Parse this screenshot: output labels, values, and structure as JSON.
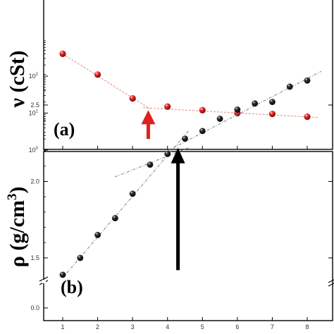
{
  "chart_data": [
    {
      "panel_label": "(a)",
      "type": "scatter",
      "xlabel": "",
      "ylabel": "ν (cSt)",
      "yscale": "log",
      "xlim": [
        0.5,
        8.5
      ],
      "ylim": [
        1,
        1000
      ],
      "x_ticks": [
        "1",
        "2",
        "3",
        "4",
        "5",
        "6",
        "7",
        "8"
      ],
      "y_ticks": [
        {
          "value": 1,
          "base": "10",
          "exp": "0"
        },
        {
          "value": 10,
          "base": "10",
          "exp": "1"
        },
        {
          "value": 100,
          "base": "10",
          "exp": "2"
        }
      ],
      "marker_color": "#e02020",
      "fit_line_color": "#e0a090",
      "series": [
        {
          "x": [
            1,
            2,
            3,
            4,
            5,
            6,
            7,
            8
          ],
          "y": [
            400,
            110,
            25,
            15,
            12,
            10,
            9.5,
            8
          ]
        }
      ],
      "fit_lines": [
        {
          "x": [
            1,
            3.5
          ],
          "y": [
            400,
            13
          ]
        },
        {
          "x": [
            3.3,
            8.3
          ],
          "y": [
            14,
            7.6
          ]
        }
      ],
      "arrow": {
        "x": 3.45,
        "y_tip": 12,
        "y_tail": 2,
        "color": "#e02020"
      }
    },
    {
      "panel_label": "(b)",
      "type": "scatter",
      "xlabel": "",
      "ylabel": "ρ (g/cm3)",
      "ylabel_base": "ρ (g/cm",
      "ylabel_sup": "3",
      "ylabel_close": ")",
      "xlim": [
        0.5,
        8.5
      ],
      "axis_break": true,
      "x_ticks": [
        "1",
        "2",
        "3",
        "4",
        "5",
        "6",
        "7",
        "8"
      ],
      "y_ticks": [
        "1.5",
        "2.0",
        "2.5"
      ],
      "y_tick_values": [
        1.5,
        2.0,
        2.5
      ],
      "y_bottom_tick": "0.0",
      "ylim_upper": [
        1.3,
        2.85
      ],
      "marker_color": "#111111",
      "fit_line_color": "#888888",
      "series": [
        {
          "x": [
            1,
            1.5,
            2,
            2.5,
            3,
            3.5,
            4,
            4.5,
            5,
            5.5,
            6,
            6.5,
            7,
            7.5,
            8
          ],
          "y": [
            1.39,
            1.5,
            1.65,
            1.76,
            1.92,
            2.11,
            2.18,
            2.28,
            2.33,
            2.41,
            2.47,
            2.51,
            2.52,
            2.62,
            2.66
          ]
        }
      ],
      "fit_lines": [
        {
          "x": [
            1,
            4.6
          ],
          "y": [
            1.37,
            2.33
          ]
        },
        {
          "x": [
            2.5,
            4.6
          ],
          "y": [
            2.03,
            2.22
          ]
        },
        {
          "x": [
            4.0,
            8.4
          ],
          "y": [
            2.2,
            2.72
          ]
        }
      ],
      "arrow": {
        "x": 4.3,
        "y_tip": 2.22,
        "y_tail": 1.42,
        "color": "#000000"
      }
    }
  ]
}
